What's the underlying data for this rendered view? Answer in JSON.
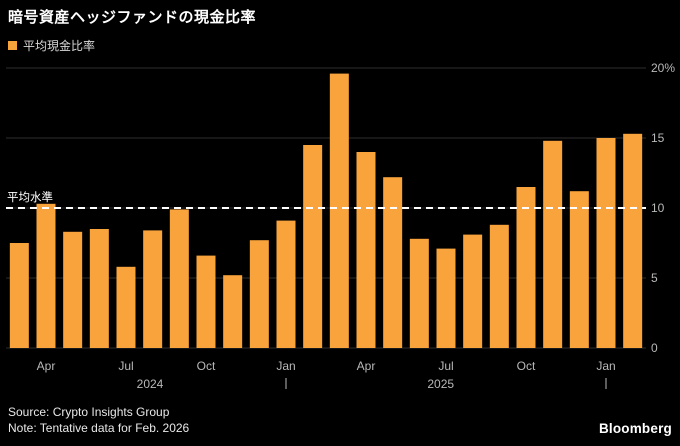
{
  "title": "暗号資産ヘッジファンドの現金比率",
  "legend": {
    "label": "平均現金比率",
    "color": "#F8A33C"
  },
  "footer": {
    "source": "Source: Crypto Insights Group",
    "note": "Note: Tentative data for Feb. 2026",
    "brand": "Bloomberg"
  },
  "chart_data": {
    "type": "bar",
    "title": "暗号資産ヘッジファンドの現金比率",
    "series_name": "平均現金比率",
    "bar_color": "#F8A33C",
    "grid": true,
    "legend_position": "top-left",
    "ylim": [
      0,
      20
    ],
    "yticks": [
      0,
      5,
      10,
      15,
      20
    ],
    "ytick_labels": [
      "0",
      "5",
      "10",
      "15",
      "20%"
    ],
    "y_axis_side": "right",
    "avg_line": {
      "value": 10,
      "label": "平均水準"
    },
    "categories": [
      "Mar 2024",
      "Apr 2024",
      "May 2024",
      "Jun 2024",
      "Jul 2024",
      "Aug 2024",
      "Sep 2024",
      "Oct 2024",
      "Nov 2024",
      "Dec 2024",
      "Jan 2025",
      "Feb 2025",
      "Mar 2025",
      "Apr 2025",
      "May 2025",
      "Jun 2025",
      "Jul 2025",
      "Aug 2025",
      "Sep 2025",
      "Oct 2025",
      "Nov 2025",
      "Dec 2025",
      "Jan 2026",
      "Feb 2026"
    ],
    "values": [
      7.5,
      10.3,
      8.3,
      8.5,
      5.8,
      8.4,
      9.9,
      6.6,
      5.2,
      7.7,
      9.1,
      14.5,
      19.6,
      14.0,
      12.2,
      7.8,
      7.1,
      8.1,
      8.8,
      11.5,
      14.8,
      11.2,
      15.0,
      15.3
    ],
    "x_ticks": [
      {
        "label": "Apr",
        "index": 1
      },
      {
        "label": "Jul",
        "index": 4
      },
      {
        "label": "Oct",
        "index": 7
      },
      {
        "label": "Jan",
        "index": 10
      },
      {
        "label": "Apr",
        "index": 13
      },
      {
        "label": "Jul",
        "index": 16
      },
      {
        "label": "Oct",
        "index": 19
      },
      {
        "label": "Jan",
        "index": 22
      }
    ],
    "year_labels": [
      {
        "text": "2024",
        "bar_index": 4.9
      },
      {
        "text": "2025",
        "bar_index": 15.8
      }
    ],
    "year_tick_marks_bar_index": [
      10,
      22
    ]
  }
}
